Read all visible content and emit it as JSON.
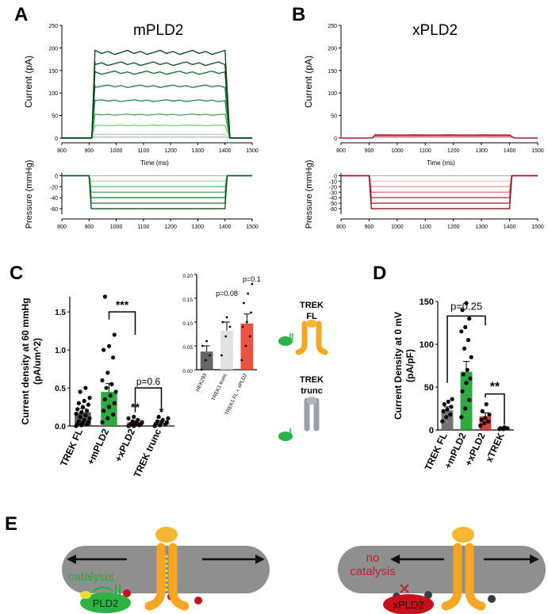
{
  "panels": {
    "A": {
      "letter": "A",
      "title": "mPLD2",
      "current_ylabel": "Current (pA)",
      "pressure_ylabel": "Pressure (mmHg)",
      "xlabel": "Time (ms)"
    },
    "B": {
      "letter": "B",
      "title": "xPLD2",
      "current_ylabel": "Current (pA)",
      "pressure_ylabel": "Pressure (mmHg)",
      "xlabel": "Time (ms)"
    },
    "C": {
      "letter": "C"
    },
    "D": {
      "letter": "D"
    },
    "E": {
      "letter": "E",
      "left_label_1": "catalysis",
      "left_enzyme": "PLD2",
      "right_label_1": "no",
      "right_label_2": "catalysis",
      "right_enzyme": "xPLD2"
    }
  },
  "schematic": {
    "trek_fl": [
      "TREK",
      "FL"
    ],
    "trek_trunc": [
      "TREK",
      "trunc"
    ]
  },
  "colors": {
    "green_dark": "#0b4d1f",
    "green_light": "#8fd48f",
    "red_dark": "#8e0f1e",
    "red_light": "#f1b8c0",
    "gray": "#b8b8b8",
    "orange": "#f6a623",
    "membrane": "#8f8f8f"
  },
  "chart_data": [
    {
      "id": "A-current",
      "type": "line",
      "xlabel": "Time (ms)",
      "ylabel": "Current (pA)",
      "xlim": [
        800,
        1500
      ],
      "ylim": [
        0,
        250
      ],
      "xticks": [
        "800",
        "900",
        "1000",
        "1100",
        "1200",
        "1300",
        "1400",
        "1500"
      ],
      "yticks": [
        "0",
        "50",
        "100",
        "150",
        "200",
        "250"
      ],
      "step_on": 910,
      "step_off": 1400,
      "series": [
        {
          "color": "#b8b8b8",
          "plateau": 2
        },
        {
          "color": "#a6dea6",
          "plateau": 8
        },
        {
          "color": "#74c476",
          "plateau": 28
        },
        {
          "color": "#41ab5d",
          "plateau": 52
        },
        {
          "color": "#238b45",
          "plateau": 83
        },
        {
          "color": "#1a7a3a",
          "plateau": 115
        },
        {
          "color": "#0f6330",
          "plateau": 145
        },
        {
          "color": "#0b4d1f",
          "plateau": 165
        },
        {
          "color": "#083d18",
          "plateau": 190
        }
      ]
    },
    {
      "id": "A-pressure",
      "type": "line",
      "ylabel": "Pressure (mmHg)",
      "xlim": [
        800,
        1500
      ],
      "ylim": [
        -70,
        5
      ],
      "xticks": [
        "800",
        "900",
        "1000",
        "1100",
        "1200",
        "1300",
        "1400",
        "1500"
      ],
      "yticks": [
        "0",
        "-20",
        "-40",
        "-60"
      ],
      "step_on": 900,
      "step_off": 1400,
      "series": [
        {
          "color": "#b8b8b8",
          "plateau": 0
        },
        {
          "color": "#a6dea6",
          "plateau": -10
        },
        {
          "color": "#74c476",
          "plateau": -20
        },
        {
          "color": "#41ab5d",
          "plateau": -30
        },
        {
          "color": "#238b45",
          "plateau": -40
        },
        {
          "color": "#1a7a3a",
          "plateau": -50
        },
        {
          "color": "#0b4d1f",
          "plateau": -60
        }
      ]
    },
    {
      "id": "B-current",
      "type": "line",
      "xlabel": "Time (ms)",
      "ylabel": "Current (pA)",
      "xlim": [
        800,
        1500
      ],
      "ylim": [
        0,
        250
      ],
      "xticks": [
        "800",
        "900",
        "1000",
        "1100",
        "1200",
        "1300",
        "1400",
        "1500"
      ],
      "yticks": [
        "0",
        "50",
        "100",
        "150",
        "200",
        "250"
      ],
      "step_on": 910,
      "step_off": 1400,
      "series": [
        {
          "color": "#b8b8b8",
          "plateau": 1
        },
        {
          "color": "#f4c6cd",
          "plateau": 2
        },
        {
          "color": "#e8909c",
          "plateau": 3
        },
        {
          "color": "#d4475a",
          "plateau": 5
        },
        {
          "color": "#b01c30",
          "plateau": 7
        }
      ]
    },
    {
      "id": "B-pressure",
      "type": "line",
      "ylabel": "Pressure (mmHg)",
      "xlim": [
        800,
        1500
      ],
      "ylim": [
        -70,
        5
      ],
      "xticks": [
        "800",
        "900",
        "1000",
        "1100",
        "1200",
        "1300",
        "1400",
        "1500"
      ],
      "yticks": [
        "0",
        "-10",
        "-20",
        "-30",
        "-40",
        "-50",
        "-60"
      ],
      "step_on": 900,
      "step_off": 1400,
      "series": [
        {
          "color": "#b8b8b8",
          "plateau": 0
        },
        {
          "color": "#f4c6cd",
          "plateau": -10
        },
        {
          "color": "#eaa0ab",
          "plateau": -20
        },
        {
          "color": "#dc6d7c",
          "plateau": -30
        },
        {
          "color": "#c7394d",
          "plateau": -40
        },
        {
          "color": "#a8182c",
          "plateau": -50
        },
        {
          "color": "#8e0f1e",
          "plateau": -60
        }
      ]
    },
    {
      "id": "C-main",
      "type": "bar",
      "ylabel": "Current density at 60 mmHg (pA/um^2)",
      "ylim": [
        0,
        1.7
      ],
      "yticks": [
        "0.0",
        "0.5",
        "1.0",
        "1.5"
      ],
      "categories": [
        "TREK FL",
        "+mPLD2",
        "+xPLD2",
        "TREK trunc"
      ],
      "values": [
        0.18,
        0.45,
        0.05,
        0.05
      ],
      "errors": [
        0.05,
        0.11,
        0.02,
        0.02
      ],
      "bar_colors": [
        "#4d4d4d",
        "#18a02e",
        "#d12c2c",
        "#9e9e9e"
      ],
      "points": [
        [
          0.0,
          0.01,
          0.02,
          0.03,
          0.04,
          0.05,
          0.06,
          0.08,
          0.1,
          0.12,
          0.14,
          0.16,
          0.18,
          0.2,
          0.22,
          0.25,
          0.28,
          0.3,
          0.33,
          0.37,
          0.45,
          0.5
        ],
        [
          0.05,
          0.1,
          0.15,
          0.2,
          0.25,
          0.3,
          0.35,
          0.4,
          0.45,
          0.5,
          0.55,
          0.6,
          0.7,
          0.9,
          1.0,
          1.05,
          1.2,
          1.7
        ],
        [
          0.0,
          0.0,
          0.01,
          0.01,
          0.02,
          0.02,
          0.03,
          0.04,
          0.05,
          0.06,
          0.08,
          0.1,
          0.12
        ],
        [
          0.0,
          0.01,
          0.02,
          0.03,
          0.04,
          0.05,
          0.06,
          0.08,
          0.1,
          0.12
        ]
      ],
      "annotations": {
        "bracket1": "***",
        "bracket2": "p=0.6",
        "star_xpld2": "**",
        "star_trunc": "*"
      }
    },
    {
      "id": "C-inset",
      "type": "bar",
      "ylim": [
        0,
        0.2
      ],
      "yticks": [
        "0.00",
        "0.05",
        "0.10",
        "0.15",
        "0.20"
      ],
      "categories": [
        "HEK293",
        "TREK1 trunc",
        "TREK1 FL + xPLD2"
      ],
      "values": [
        0.038,
        0.082,
        0.097
      ],
      "errors": [
        0.012,
        0.018,
        0.02
      ],
      "bar_colors": [
        "#555555",
        "#dedede",
        "#e8402d"
      ],
      "points": [
        [
          0.0,
          0.02,
          0.03,
          0.05,
          0.06
        ],
        [
          0.03,
          0.07,
          0.09,
          0.1,
          0.11
        ],
        [
          0.02,
          0.05,
          0.07,
          0.09,
          0.1,
          0.12,
          0.14,
          0.16,
          0.18
        ]
      ],
      "annotations": {
        "p1": "p=0.08",
        "p2": "p=0.1"
      }
    },
    {
      "id": "D",
      "type": "bar",
      "ylabel": "Current Density at 0 mV (pA/pF)",
      "ylim": [
        0,
        150
      ],
      "yticks": [
        "0",
        "50",
        "100",
        "150"
      ],
      "categories": [
        "TREK FL",
        "+mPLD2",
        "+xPLD2",
        "xTREK"
      ],
      "values": [
        23,
        68,
        16,
        2
      ],
      "errors": [
        4,
        12,
        4,
        1
      ],
      "bar_colors": [
        "#666666",
        "#18a02e",
        "#d12c2c",
        "#444444"
      ],
      "points": [
        [
          10,
          15,
          18,
          22,
          24,
          27,
          30,
          33,
          36
        ],
        [
          15,
          25,
          35,
          45,
          55,
          60,
          65,
          70,
          85,
          95,
          105,
          115,
          120,
          130,
          140,
          148
        ],
        [
          5,
          8,
          10,
          12,
          14,
          18,
          22,
          30
        ],
        [
          1,
          1,
          2,
          2,
          3
        ]
      ],
      "annotations": {
        "bracket1": "p=0.25",
        "bracket2": "**"
      }
    }
  ]
}
